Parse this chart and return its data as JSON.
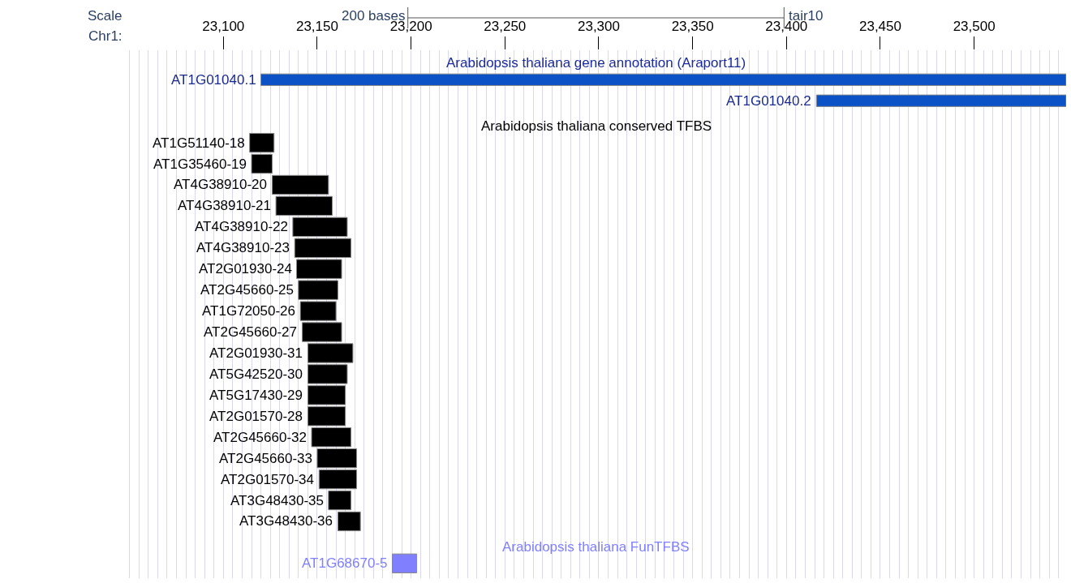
{
  "chart_data": {
    "type": "bar",
    "orientation": "horizontal",
    "xlabel": "Chr1:",
    "categories": [
      null,
      "AT1G01040.1",
      "AT1G01040.2",
      null,
      "AT1G51140-18",
      "AT1G35460-19",
      "AT4G38910-20",
      "AT4G38910-21",
      "AT4G38910-22",
      "AT4G38910-23",
      "AT2G01930-24",
      "AT2G45660-25",
      "AT1G72050-26",
      "AT2G45660-27",
      "AT2G01930-31",
      "AT5G42520-30",
      "AT5G17430-29",
      "AT2G01570-28",
      "AT2G45660-32",
      "AT2G45660-33",
      "AT2G01570-34",
      "AT3G48430-35",
      "AT3G48430-36",
      null,
      "AT1G68670-5"
    ],
    "base": [
      null,
      23120,
      23416,
      null,
      23114,
      23115,
      23126,
      23128,
      23137,
      23138,
      23139,
      23140,
      23141,
      23142,
      23145,
      23145,
      23145,
      23145,
      23147,
      23150,
      23151,
      23156,
      23161,
      null,
      23190
    ],
    "values": [
      null,
      429,
      133,
      null,
      13,
      11,
      30,
      30,
      29,
      30,
      24,
      21,
      19,
      21,
      24,
      21,
      20,
      20,
      21,
      21,
      20,
      12,
      12,
      null,
      13
    ],
    "colors": [
      null,
      "#0b52c6",
      "#0b52c6",
      null,
      "#000000",
      "#000000",
      "#000000",
      "#000000",
      "#000000",
      "#000000",
      "#000000",
      "#000000",
      "#000000",
      "#000000",
      "#000000",
      "#000000",
      "#000000",
      "#000000",
      "#000000",
      "#000000",
      "#000000",
      "#000000",
      "#000000",
      null,
      "#8080ff"
    ],
    "xlim": [
      23048,
      23549
    ],
    "xticks": [
      {
        "value": 23100,
        "label": "23,100"
      },
      {
        "value": 23150,
        "label": "23,150"
      },
      {
        "value": 23200,
        "label": "23,200"
      },
      {
        "value": 23250,
        "label": "23,250"
      },
      {
        "value": 23300,
        "label": "23,300"
      },
      {
        "value": 23350,
        "label": "23,350"
      },
      {
        "value": 23400,
        "label": "23,400"
      },
      {
        "value": 23450,
        "label": "23,450"
      },
      {
        "value": 23500,
        "label": "23,500"
      }
    ],
    "grid": "x",
    "legend": false,
    "annotations": [
      "Scale",
      "200 bases",
      "tair10",
      "Arabidopsis thaliana gene annotation (Araport11)",
      "Arabidopsis thaliana conserved TFBS",
      "Arabidopsis thaliana FunTFBS"
    ]
  }
}
